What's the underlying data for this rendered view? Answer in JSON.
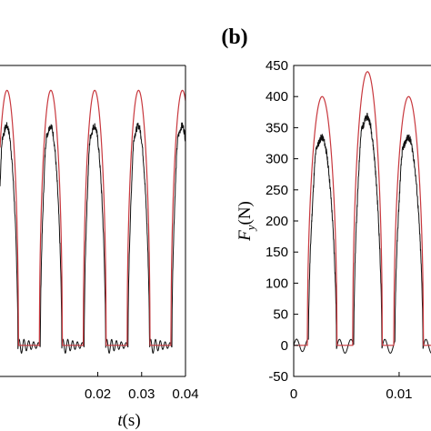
{
  "chart_data": [
    {
      "type": "line",
      "xlabel": "t(s)",
      "ylabel": "",
      "xlim": [
        0.0,
        0.04
      ],
      "ylim": [
        -50,
        450
      ],
      "xticks": [
        "0.02",
        "0.03",
        "0.04"
      ],
      "xtick_values": [
        0.02,
        0.03,
        0.04
      ],
      "series": [
        {
          "color": "#c8383e",
          "peaks": [
            410,
            410,
            410,
            410
          ],
          "pulse_starts": [
            0.0117,
            0.0217,
            0.0317,
            0.0417
          ],
          "period": 0.01,
          "pulse_width": 0.0067
        },
        {
          "color": "#111111",
          "peaks": [
            375,
            375,
            375,
            375
          ]
        }
      ]
    },
    {
      "type": "line",
      "panel_label": "(b)",
      "xlabel": "",
      "ylabel": "F_y(N)",
      "xlim": [
        0.0,
        0.0138
      ],
      "ylim": [
        -50,
        450
      ],
      "xticks": [
        "0",
        "0.01"
      ],
      "xtick_values": [
        0,
        0.01
      ],
      "yticks": [
        "450",
        "400",
        "350",
        "300",
        "250",
        "200",
        "150",
        "100",
        "50",
        "0",
        "-50"
      ],
      "ytick_values": [
        450,
        400,
        350,
        300,
        250,
        200,
        150,
        100,
        50,
        0,
        -50
      ],
      "series": [
        {
          "color": "#c8383e",
          "peaks": [
            400,
            440,
            400,
            440
          ],
          "pulse_starts": [
            0.0012,
            0.0057,
            0.0102,
            0.0137
          ],
          "pulse_width": 0.0033
        },
        {
          "color": "#111111",
          "peaks": [
            355,
            390,
            355,
            395
          ]
        }
      ]
    }
  ],
  "panel_b_label": "(b)",
  "panel_b_ylabel_main": "F",
  "panel_b_ylabel_sub": "y",
  "panel_b_ylabel_unit": "(N)",
  "panel_a_xlabel_main": "t",
  "panel_a_xlabel_unit": "(s)"
}
